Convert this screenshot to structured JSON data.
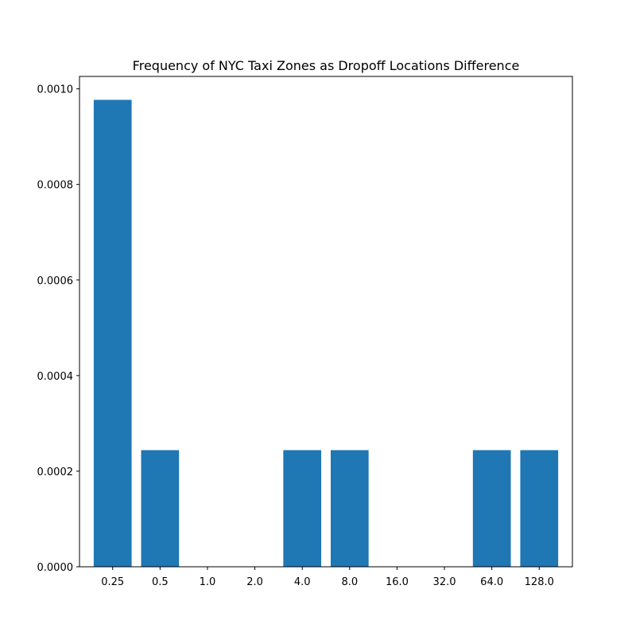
{
  "chart_data": {
    "type": "bar",
    "title": "Frequency of NYC Taxi Zones as Dropoff Locations Difference",
    "xlabel": "",
    "ylabel": "",
    "categories": [
      "0.25",
      "0.5",
      "1.0",
      "2.0",
      "4.0",
      "8.0",
      "16.0",
      "32.0",
      "64.0",
      "128.0"
    ],
    "values": [
      0.000977,
      0.000244,
      0,
      0,
      0.000244,
      0.000244,
      0,
      0,
      0.000244,
      0.000244
    ],
    "ylim": [
      0,
      0.001026
    ],
    "yticks": [
      "0.0000",
      "0.0002",
      "0.0004",
      "0.0006",
      "0.0008",
      "0.0010"
    ],
    "grid": false,
    "bar_color": "#1f77b4"
  }
}
